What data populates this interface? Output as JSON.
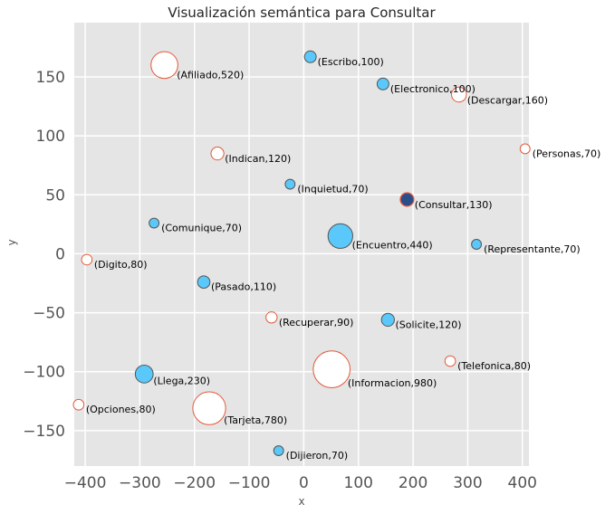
{
  "chart_data": {
    "type": "scatter",
    "title": "Visualización semántica para Consultar",
    "xlabel": "x",
    "ylabel": "y",
    "xlim": [
      -420,
      412
    ],
    "ylim": [
      -180,
      196
    ],
    "xticks": [
      -400,
      -300,
      -200,
      -100,
      0,
      100,
      200,
      300,
      400
    ],
    "yticks": [
      -150,
      -100,
      -50,
      0,
      50,
      100,
      150
    ],
    "grid": true,
    "colors": {
      "background": "#e5e5e5",
      "filled": "#5ac8fa",
      "filled_edge": "#555555",
      "hollow_edge": "#e2593a",
      "hollow_fill": "#ffffff",
      "highlight_fill": "#2a4e8a"
    },
    "points": [
      {
        "word": "Afiliado",
        "count": 520,
        "x": -255,
        "y": 160,
        "style": "hollow"
      },
      {
        "word": "Escribo",
        "count": 100,
        "x": 12,
        "y": 167,
        "style": "filled"
      },
      {
        "word": "Electronico",
        "count": 100,
        "x": 145,
        "y": 144,
        "style": "filled"
      },
      {
        "word": "Descargar",
        "count": 160,
        "x": 284,
        "y": 135,
        "style": "hollow"
      },
      {
        "word": "Indican",
        "count": 120,
        "x": -158,
        "y": 85,
        "style": "hollow"
      },
      {
        "word": "Personas",
        "count": 70,
        "x": 405,
        "y": 89,
        "style": "hollow"
      },
      {
        "word": "Inquietud",
        "count": 70,
        "x": -25,
        "y": 59,
        "style": "filled"
      },
      {
        "word": "Consultar",
        "count": 130,
        "x": 189,
        "y": 46,
        "style": "highlight"
      },
      {
        "word": "Comunique",
        "count": 70,
        "x": -274,
        "y": 26,
        "style": "filled"
      },
      {
        "word": "Encuentro",
        "count": 440,
        "x": 67,
        "y": 15,
        "style": "filled"
      },
      {
        "word": "Representante",
        "count": 70,
        "x": 316,
        "y": 8,
        "style": "filled"
      },
      {
        "word": "Digito",
        "count": 80,
        "x": -397,
        "y": -5,
        "style": "hollow"
      },
      {
        "word": "Pasado",
        "count": 110,
        "x": -183,
        "y": -24,
        "style": "filled"
      },
      {
        "word": "Recuperar",
        "count": 90,
        "x": -59,
        "y": -54,
        "style": "hollow"
      },
      {
        "word": "Solicite",
        "count": 120,
        "x": 154,
        "y": -56,
        "style": "filled"
      },
      {
        "word": "Telefonica",
        "count": 80,
        "x": 268,
        "y": -91,
        "style": "hollow"
      },
      {
        "word": "Llega",
        "count": 230,
        "x": -292,
        "y": -102,
        "style": "filled"
      },
      {
        "word": "Informacion",
        "count": 980,
        "x": 51,
        "y": -98,
        "style": "hollow"
      },
      {
        "word": "Opciones",
        "count": 80,
        "x": -412,
        "y": -128,
        "style": "hollow"
      },
      {
        "word": "Tarjeta",
        "count": 780,
        "x": -173,
        "y": -131,
        "style": "hollow"
      },
      {
        "word": "Dijieron",
        "count": 70,
        "x": -46,
        "y": -167,
        "style": "filled"
      }
    ]
  }
}
